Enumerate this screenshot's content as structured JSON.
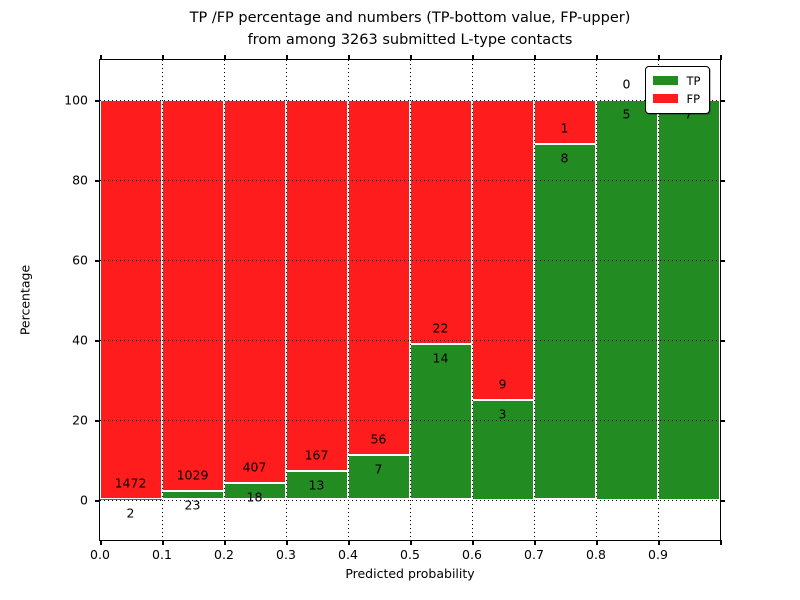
{
  "title": {
    "line1": "TP /FP percentage and numbers (TP-bottom value, FP-upper)",
    "line2": "from among 3263 submitted L-type contacts"
  },
  "axes": {
    "xlabel": "Predicted probability",
    "ylabel": "Percentage",
    "x_tick_labels": [
      "0.0",
      "0.1",
      "0.2",
      "0.3",
      "0.4",
      "0.5",
      "0.6",
      "0.7",
      "0.8",
      "0.9"
    ],
    "y_tick_labels": [
      "0",
      "20",
      "40",
      "60",
      "80",
      "100"
    ]
  },
  "legend": {
    "items": [
      {
        "label": "TP",
        "color": "#228b22"
      },
      {
        "label": "FP",
        "color": "#ff1c1c"
      }
    ]
  },
  "chart_data": {
    "type": "bar",
    "stacked": true,
    "title": "TP /FP percentage and numbers (TP-bottom value, FP-upper) from among 3263 submitted L-type contacts",
    "xlabel": "Predicted probability",
    "ylabel": "Percentage",
    "xlim": [
      0.0,
      1.0
    ],
    "ylim": [
      -10,
      110
    ],
    "x_ticks": [
      0.0,
      0.1,
      0.2,
      0.3,
      0.4,
      0.5,
      0.6,
      0.7,
      0.8,
      0.9,
      1.0
    ],
    "y_ticks": [
      0,
      20,
      40,
      60,
      80,
      100
    ],
    "grid": "dotted",
    "legend_position": "upper right",
    "total_contacts": 3263,
    "colors": {
      "tp": "#228b22",
      "fp": "#ff1c1c"
    },
    "bins": [
      {
        "range": [
          0.0,
          0.1
        ],
        "tp": 2,
        "fp": 1472,
        "tp_pct": 0.14,
        "fp_pct": 99.86
      },
      {
        "range": [
          0.1,
          0.2
        ],
        "tp": 23,
        "fp": 1029,
        "tp_pct": 2.19,
        "fp_pct": 97.81
      },
      {
        "range": [
          0.2,
          0.3
        ],
        "tp": 18,
        "fp": 407,
        "tp_pct": 4.24,
        "fp_pct": 95.76
      },
      {
        "range": [
          0.3,
          0.4
        ],
        "tp": 13,
        "fp": 167,
        "tp_pct": 7.22,
        "fp_pct": 92.78
      },
      {
        "range": [
          0.4,
          0.5
        ],
        "tp": 7,
        "fp": 56,
        "tp_pct": 11.11,
        "fp_pct": 88.89
      },
      {
        "range": [
          0.5,
          0.6
        ],
        "tp": 14,
        "fp": 22,
        "tp_pct": 38.89,
        "fp_pct": 61.11
      },
      {
        "range": [
          0.6,
          0.7
        ],
        "tp": 3,
        "fp": 9,
        "tp_pct": 25.0,
        "fp_pct": 75.0
      },
      {
        "range": [
          0.7,
          0.8
        ],
        "tp": 8,
        "fp": 1,
        "tp_pct": 88.89,
        "fp_pct": 11.11
      },
      {
        "range": [
          0.8,
          0.9
        ],
        "tp": 5,
        "fp": 0,
        "tp_pct": 100.0,
        "fp_pct": 0.0
      },
      {
        "range": [
          0.9,
          1.0
        ],
        "tp": 7,
        "fp": 0,
        "tp_pct": 100.0,
        "fp_pct": 0.0
      }
    ]
  }
}
